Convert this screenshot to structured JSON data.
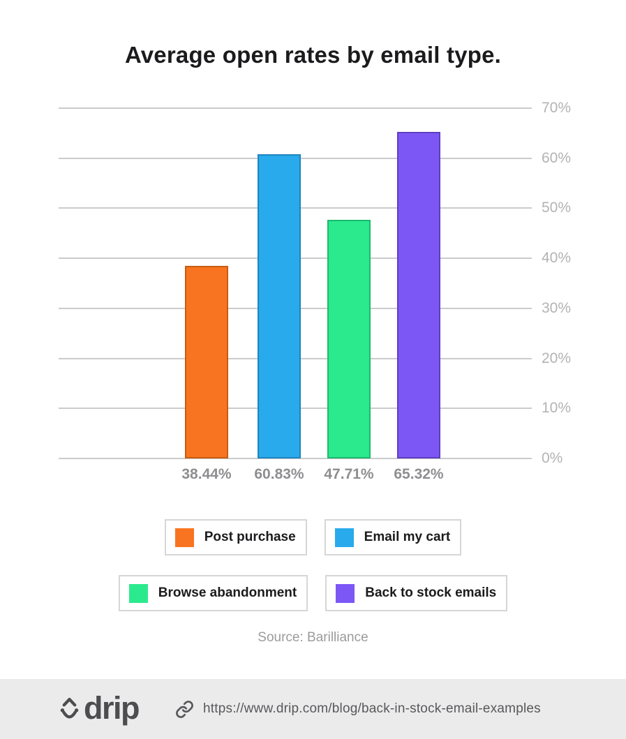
{
  "title": "Average open rates by email type.",
  "source_note": "Source: Barilliance",
  "footer": {
    "logo_text": "drip",
    "url": "https://www.drip.com/blog/back-in-stock-email-examples"
  },
  "chart_data": {
    "type": "bar",
    "title": "Average open rates by email type.",
    "categories": [
      "Post purchase",
      "Email my cart",
      "Browse abandonment",
      "Back to stock emails"
    ],
    "values": [
      38.44,
      60.83,
      47.71,
      65.32
    ],
    "value_labels": [
      "38.44%",
      "60.83%",
      "47.71%",
      "65.32%"
    ],
    "bar_colors": [
      "#f97420",
      "#29aaec",
      "#2bea8d",
      "#7c57f5"
    ],
    "bar_border_colors": [
      "#c65c12",
      "#1f85bd",
      "#1cb96e",
      "#5e3fc0"
    ],
    "xlabel": "",
    "ylabel": "",
    "ylim": [
      0,
      70
    ],
    "yticks": [
      0,
      10,
      20,
      30,
      40,
      50,
      60,
      70
    ],
    "ytick_labels": [
      "0%",
      "10%",
      "20%",
      "30%",
      "40%",
      "50%",
      "60%",
      "70%"
    ],
    "y_axis_side": "right",
    "grid": true,
    "legend_position": "bottom",
    "legend_rows": [
      2,
      2
    ]
  },
  "colors": {
    "background": "#ffffff",
    "footer_background": "#ebebec",
    "gridline": "#cbcbcd",
    "axis_label": "#b3b3b5",
    "value_label": "#8e8e91",
    "title_text": "#1b1b1d",
    "legend_border": "#d6d6d6",
    "legend_text": "#1b1b1d",
    "source_text": "#9b9b9d",
    "footer_text": "#58585a",
    "logo_color": "#4d4d4f"
  }
}
